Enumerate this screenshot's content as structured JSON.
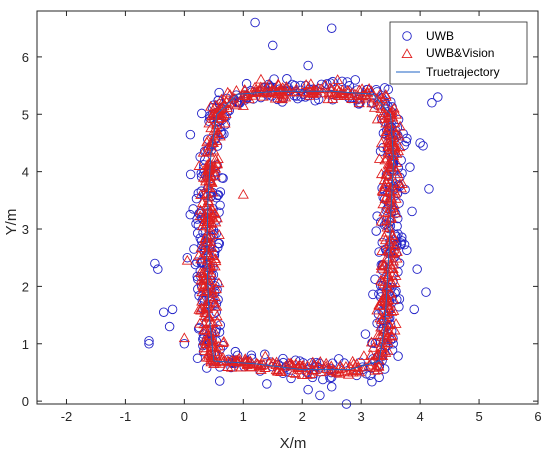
{
  "chart_data": {
    "type": "scatter",
    "xlabel": "X/m",
    "ylabel": "Y/m",
    "xlim": [
      -2.5,
      6
    ],
    "ylim": [
      -0.05,
      6.8
    ],
    "xticks": [
      -2,
      -1,
      0,
      1,
      2,
      3,
      4,
      5,
      6
    ],
    "yticks": [
      0,
      1,
      2,
      3,
      4,
      5,
      6
    ],
    "legend_position": "top-right",
    "colors": {
      "uwb": "#2323c8",
      "uwb_vision": "#e02020",
      "truth": "#1f63c4",
      "axis": "#262626"
    },
    "series": [
      {
        "name": "UWB",
        "marker": "circle",
        "outline_note": "noisy rectangle loop, approx x 0.3-3.6, y 0.5-5.3",
        "outliers": [
          [
            1.2,
            6.6
          ],
          [
            2.5,
            6.5
          ],
          [
            1.5,
            6.2
          ],
          [
            2.1,
            5.85
          ],
          [
            2.9,
            5.6
          ],
          [
            4.2,
            5.2
          ],
          [
            4.3,
            5.3
          ],
          [
            -0.45,
            2.3
          ],
          [
            -0.5,
            2.4
          ],
          [
            -0.6,
            1.05
          ],
          [
            -0.6,
            1.0
          ],
          [
            -0.35,
            1.55
          ],
          [
            -0.25,
            1.3
          ],
          [
            -0.2,
            1.6
          ],
          [
            0.05,
            2.5
          ],
          [
            0.1,
            3.25
          ],
          [
            0.15,
            3.35
          ],
          [
            0.0,
            1.0
          ],
          [
            2.75,
            -0.05
          ],
          [
            2.5,
            0.25
          ],
          [
            2.1,
            0.2
          ],
          [
            2.3,
            0.1
          ],
          [
            3.15,
            0.45
          ],
          [
            3.9,
            1.6
          ],
          [
            4.1,
            1.9
          ],
          [
            4.15,
            3.7
          ],
          [
            4.05,
            4.45
          ],
          [
            4.0,
            4.5
          ],
          [
            3.95,
            2.3
          ],
          [
            0.6,
            0.35
          ],
          [
            1.4,
            0.3
          ]
        ]
      },
      {
        "name": "UWB&Vision",
        "marker": "triangle",
        "outline_note": "tighter rectangle loop, approx x 0.45-3.55, y 0.6-5.4",
        "outliers": [
          [
            0.0,
            1.1
          ],
          [
            0.05,
            2.45
          ],
          [
            0.3,
            1.9
          ],
          [
            0.25,
            4.1
          ],
          [
            1.0,
            3.6
          ],
          [
            2.6,
            5.6
          ],
          [
            3.3,
            0.6
          ]
        ]
      },
      {
        "name": "Truetrajectory",
        "marker": "line",
        "path": [
          [
            0.5,
            0.7
          ],
          [
            0.42,
            1.5
          ],
          [
            0.38,
            2.5
          ],
          [
            0.4,
            3.5
          ],
          [
            0.45,
            4.3
          ],
          [
            0.55,
            5.0
          ],
          [
            0.9,
            5.35
          ],
          [
            1.6,
            5.4
          ],
          [
            2.5,
            5.4
          ],
          [
            3.2,
            5.35
          ],
          [
            3.5,
            5.0
          ],
          [
            3.55,
            4.2
          ],
          [
            3.5,
            3.2
          ],
          [
            3.45,
            2.2
          ],
          [
            3.4,
            1.3
          ],
          [
            3.3,
            0.7
          ],
          [
            2.8,
            0.55
          ],
          [
            2.0,
            0.55
          ],
          [
            1.2,
            0.65
          ],
          [
            0.5,
            0.7
          ]
        ]
      }
    ]
  }
}
